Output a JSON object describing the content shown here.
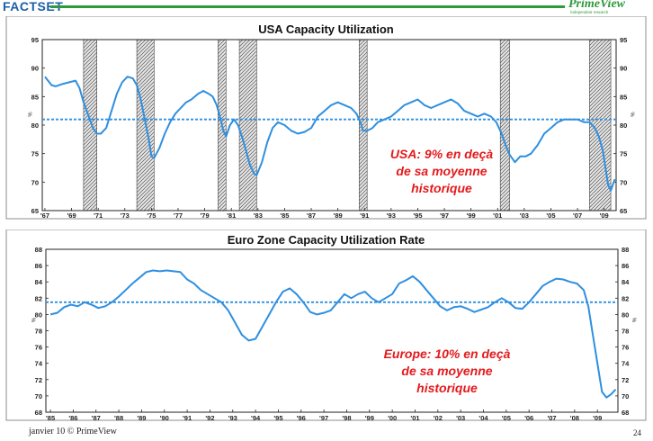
{
  "header": {
    "logo_left": "FACTSET",
    "logo_right": "PrimeView",
    "logo_right_tagline": "independent research"
  },
  "footer": {
    "left": "janvier 10 © PrimeView",
    "page": "24"
  },
  "colors": {
    "line": "#2f8fe0",
    "mean": "#2f8fe0",
    "annotation": "#e41a1c",
    "recession_fill": "#cfcfcf",
    "logo_left": "#1a5fa8",
    "logo_right": "#2e9a3a"
  },
  "chart_data": [
    {
      "type": "line",
      "title": "USA Capacity Utilization",
      "ylabel": "%",
      "ylim": [
        65,
        95
      ],
      "xlim": [
        1966.8,
        2009.9
      ],
      "yticks": [
        65,
        70,
        75,
        80,
        85,
        90,
        95
      ],
      "xticks": [
        "'67",
        "'69",
        "'71",
        "'73",
        "'75",
        "'77",
        "'79",
        "'81",
        "'83",
        "'85",
        "'87",
        "'89",
        "'91",
        "'93",
        "'95",
        "'97",
        "'99",
        "'01",
        "'03",
        "'05",
        "'07",
        "'09"
      ],
      "xtick_years": [
        1967,
        1969,
        1971,
        1973,
        1975,
        1977,
        1979,
        1981,
        1983,
        1985,
        1987,
        1989,
        1991,
        1993,
        1995,
        1997,
        1999,
        2001,
        2003,
        2005,
        2007,
        2009
      ],
      "mean": 81,
      "recessions": [
        [
          1969.9,
          1970.9
        ],
        [
          1973.9,
          1975.2
        ],
        [
          1980.0,
          1980.6
        ],
        [
          1981.6,
          1982.9
        ],
        [
          1990.6,
          1991.2
        ],
        [
          2001.2,
          2001.9
        ],
        [
          2007.9,
          2009.5
        ]
      ],
      "annotation": [
        "USA: 9% en deçà",
        "de sa moyenne",
        "historique"
      ],
      "series": [
        {
          "x": [
            1967.0,
            1967.5,
            1967.8,
            1968.3,
            1968.8,
            1969.3,
            1969.6,
            1969.9,
            1970.3,
            1970.6,
            1970.9,
            1971.2,
            1971.6,
            1972.0,
            1972.4,
            1972.8,
            1973.2,
            1973.6,
            1973.9,
            1974.2,
            1974.5,
            1974.8,
            1975.0,
            1975.2,
            1975.6,
            1976.0,
            1976.4,
            1976.8,
            1977.2,
            1977.6,
            1978.0,
            1978.5,
            1978.9,
            1979.3,
            1979.6,
            1979.9,
            1980.2,
            1980.4,
            1980.6,
            1980.9,
            1981.2,
            1981.5,
            1981.8,
            1982.1,
            1982.4,
            1982.7,
            1982.9,
            1983.3,
            1983.7,
            1984.1,
            1984.5,
            1985.0,
            1985.5,
            1986.0,
            1986.5,
            1987.0,
            1987.5,
            1988.0,
            1988.5,
            1989.0,
            1989.5,
            1990.0,
            1990.4,
            1990.7,
            1990.9,
            1991.2,
            1991.6,
            1992.0,
            1992.5,
            1993.0,
            1993.5,
            1994.0,
            1994.5,
            1995.0,
            1995.5,
            1996.0,
            1996.5,
            1997.0,
            1997.5,
            1998.0,
            1998.5,
            1999.0,
            1999.5,
            2000.0,
            2000.5,
            2000.9,
            2001.3,
            2001.6,
            2001.9,
            2002.3,
            2002.7,
            2003.1,
            2003.5,
            2004.0,
            2004.5,
            2005.0,
            2005.5,
            2006.0,
            2006.5,
            2007.0,
            2007.5,
            2007.9,
            2008.3,
            2008.6,
            2008.9,
            2009.1,
            2009.3,
            2009.5,
            2009.8
          ],
          "values": [
            88.5,
            87.0,
            86.8,
            87.2,
            87.5,
            87.8,
            86.5,
            84.0,
            81.5,
            79.5,
            78.5,
            78.5,
            79.5,
            82.5,
            85.5,
            87.5,
            88.5,
            88.2,
            87.0,
            84.5,
            81.0,
            77.5,
            74.5,
            74.2,
            76.0,
            78.5,
            80.5,
            82.0,
            83.0,
            84.0,
            84.5,
            85.5,
            86.0,
            85.5,
            85.0,
            83.5,
            81.0,
            79.0,
            78.0,
            80.0,
            81.0,
            80.0,
            78.0,
            75.5,
            73.0,
            71.5,
            71.2,
            73.5,
            77.0,
            79.5,
            80.5,
            80.0,
            79.0,
            78.5,
            78.8,
            79.5,
            81.5,
            82.5,
            83.5,
            84.0,
            83.5,
            83.0,
            82.0,
            80.5,
            79.0,
            79.0,
            79.5,
            80.5,
            81.0,
            81.5,
            82.5,
            83.5,
            84.0,
            84.5,
            83.5,
            83.0,
            83.5,
            84.0,
            84.5,
            83.8,
            82.5,
            82.0,
            81.5,
            82.0,
            81.5,
            80.5,
            78.5,
            76.5,
            74.8,
            73.5,
            74.5,
            74.5,
            75.0,
            76.5,
            78.5,
            79.5,
            80.5,
            81.0,
            81.0,
            81.0,
            80.5,
            80.5,
            79.5,
            78.0,
            75.5,
            72.5,
            69.5,
            68.5,
            70.5
          ]
        }
      ]
    },
    {
      "type": "line",
      "title": "Euro Zone Capacity Utilization Rate",
      "ylabel": "%",
      "ylim": [
        68,
        88
      ],
      "xlim": [
        1984.8,
        2009.9
      ],
      "yticks": [
        68,
        70,
        72,
        74,
        76,
        78,
        80,
        82,
        84,
        86,
        88
      ],
      "xticks": [
        "'85",
        "'86",
        "'87",
        "'88",
        "'89",
        "'90",
        "'91",
        "'92",
        "'93",
        "'94",
        "'95",
        "'96",
        "'97",
        "'98",
        "'99",
        "'00",
        "'01",
        "'02",
        "'03",
        "'04",
        "'05",
        "'06",
        "'07",
        "'08",
        "'09"
      ],
      "xtick_years": [
        1985,
        1986,
        1987,
        1988,
        1989,
        1990,
        1991,
        1992,
        1993,
        1994,
        1995,
        1996,
        1997,
        1998,
        1999,
        2000,
        2001,
        2002,
        2003,
        2004,
        2005,
        2006,
        2007,
        2008,
        2009
      ],
      "mean": 81.5,
      "annotation": [
        "Europe: 10% en deçà",
        "de sa moyenne",
        "historique"
      ],
      "series": [
        {
          "x": [
            1985.0,
            1985.3,
            1985.6,
            1985.9,
            1986.2,
            1986.5,
            1986.8,
            1987.1,
            1987.4,
            1987.7,
            1988.0,
            1988.3,
            1988.6,
            1988.9,
            1989.2,
            1989.5,
            1989.8,
            1990.1,
            1990.4,
            1990.7,
            1991.0,
            1991.3,
            1991.6,
            1991.9,
            1992.2,
            1992.5,
            1992.8,
            1993.1,
            1993.4,
            1993.7,
            1994.0,
            1994.3,
            1994.6,
            1994.9,
            1995.2,
            1995.5,
            1995.8,
            1996.1,
            1996.4,
            1996.7,
            1997.0,
            1997.3,
            1997.6,
            1997.9,
            1998.2,
            1998.5,
            1998.8,
            1999.1,
            1999.4,
            1999.7,
            2000.0,
            2000.3,
            2000.6,
            2000.9,
            2001.2,
            2001.5,
            2001.8,
            2002.1,
            2002.4,
            2002.7,
            2003.0,
            2003.3,
            2003.6,
            2003.9,
            2004.2,
            2004.5,
            2004.8,
            2005.1,
            2005.4,
            2005.7,
            2006.0,
            2006.3,
            2006.6,
            2006.9,
            2007.2,
            2007.5,
            2007.8,
            2008.1,
            2008.4,
            2008.6,
            2008.8,
            2009.0,
            2009.2,
            2009.4,
            2009.6,
            2009.8
          ],
          "values": [
            80.0,
            80.2,
            80.9,
            81.2,
            81.0,
            81.5,
            81.2,
            80.8,
            81.0,
            81.5,
            82.2,
            83.0,
            83.8,
            84.5,
            85.2,
            85.4,
            85.3,
            85.4,
            85.3,
            85.2,
            84.3,
            83.8,
            83.0,
            82.5,
            82.0,
            81.5,
            80.5,
            79.0,
            77.5,
            76.8,
            77.0,
            78.5,
            80.0,
            81.5,
            82.8,
            83.2,
            82.5,
            81.5,
            80.3,
            80.0,
            80.2,
            80.5,
            81.5,
            82.5,
            82.0,
            82.5,
            82.8,
            82.0,
            81.5,
            82.0,
            82.5,
            83.8,
            84.2,
            84.7,
            84.0,
            83.0,
            82.0,
            81.0,
            80.5,
            80.9,
            81.0,
            80.7,
            80.3,
            80.6,
            80.9,
            81.5,
            82.0,
            81.5,
            80.8,
            80.7,
            81.5,
            82.5,
            83.5,
            84.0,
            84.4,
            84.3,
            84.0,
            83.8,
            83.0,
            81.0,
            77.5,
            74.0,
            70.5,
            69.8,
            70.2,
            70.8
          ]
        }
      ]
    }
  ]
}
